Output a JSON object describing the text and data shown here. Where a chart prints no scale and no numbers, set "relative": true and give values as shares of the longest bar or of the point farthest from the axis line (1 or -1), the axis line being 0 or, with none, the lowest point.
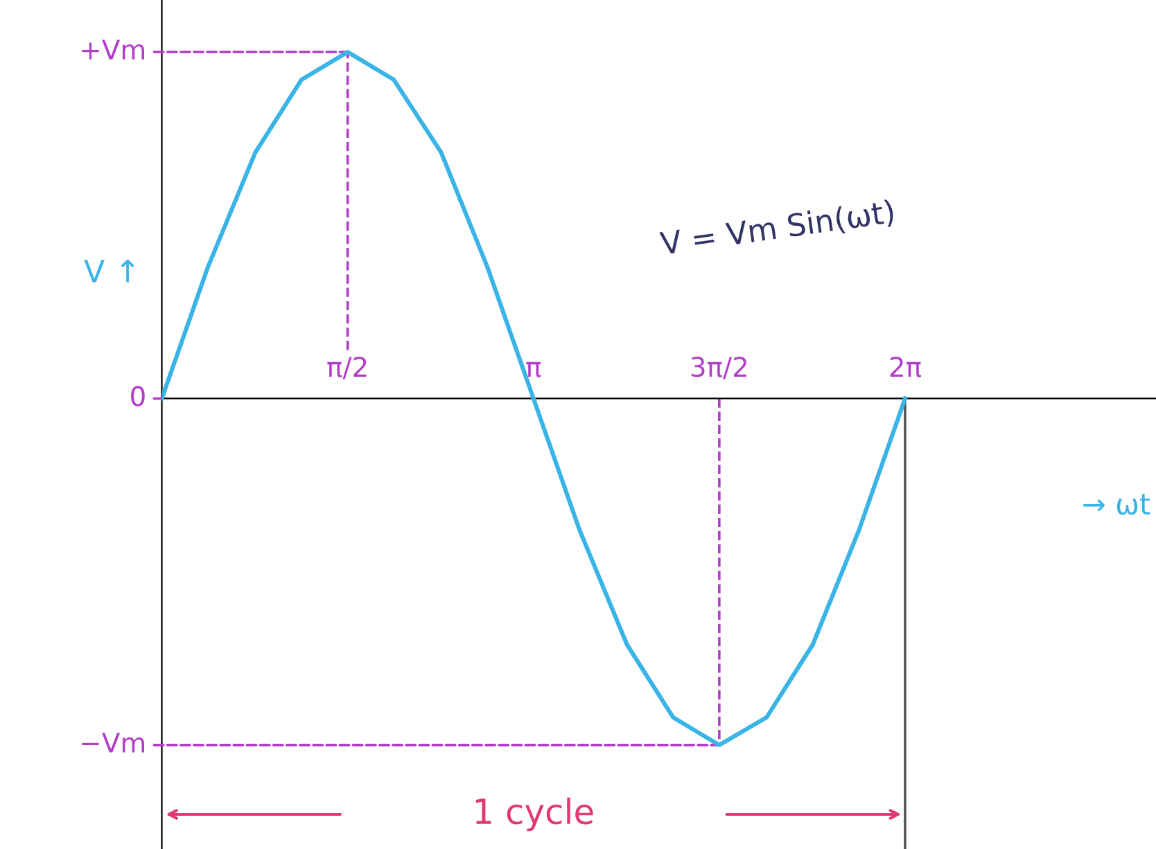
{
  "chart_data": {
    "type": "line",
    "title": null,
    "xlabel": "→ ωt",
    "ylabel": "V ↑",
    "x": [
      0,
      0.39,
      0.79,
      1.18,
      1.57,
      1.96,
      2.36,
      2.75,
      3.14,
      3.53,
      3.93,
      4.32,
      4.71,
      5.11,
      5.5,
      5.89,
      6.28
    ],
    "series": [
      {
        "color": "#3ab4e6",
        "values": [
          0,
          0.38,
          0.71,
          0.92,
          1,
          0.92,
          0.71,
          0.38,
          0,
          -0.38,
          -0.71,
          -0.92,
          -1,
          -0.92,
          -0.71,
          -0.38,
          0
        ]
      }
    ],
    "xlim": [
      0,
      8.4
    ],
    "relative": true,
    "xticks": [
      {
        "value": 1.57,
        "label": "π/2"
      },
      {
        "value": 3.14,
        "label": "π"
      },
      {
        "value": 4.71,
        "label": "3π/2"
      },
      {
        "value": 6.28,
        "label": "2π"
      }
    ],
    "ref_lines": [
      {
        "axis": "x",
        "value": 1.57,
        "color": "#b23ec8",
        "line_style": "dashed"
      },
      {
        "axis": "x",
        "value": 4.71,
        "color": "#b23ec8",
        "line_style": "dashed"
      },
      {
        "axis": "x",
        "value": 6.28,
        "color": "#555555",
        "line_style": "solid"
      }
    ],
    "annotations": [
      "V = Vm Sin(ωt)",
      {
        "text": "+Vm",
        "x": 1.57,
        "y": 1
      },
      {
        "text": "0",
        "x": 0,
        "y": 0
      },
      {
        "text": "−Vm",
        "x": 4.71,
        "y": -1
      },
      "1 cycle"
    ],
    "grid": false,
    "legend": false,
    "marker": "none",
    "line_style": "solid"
  }
}
